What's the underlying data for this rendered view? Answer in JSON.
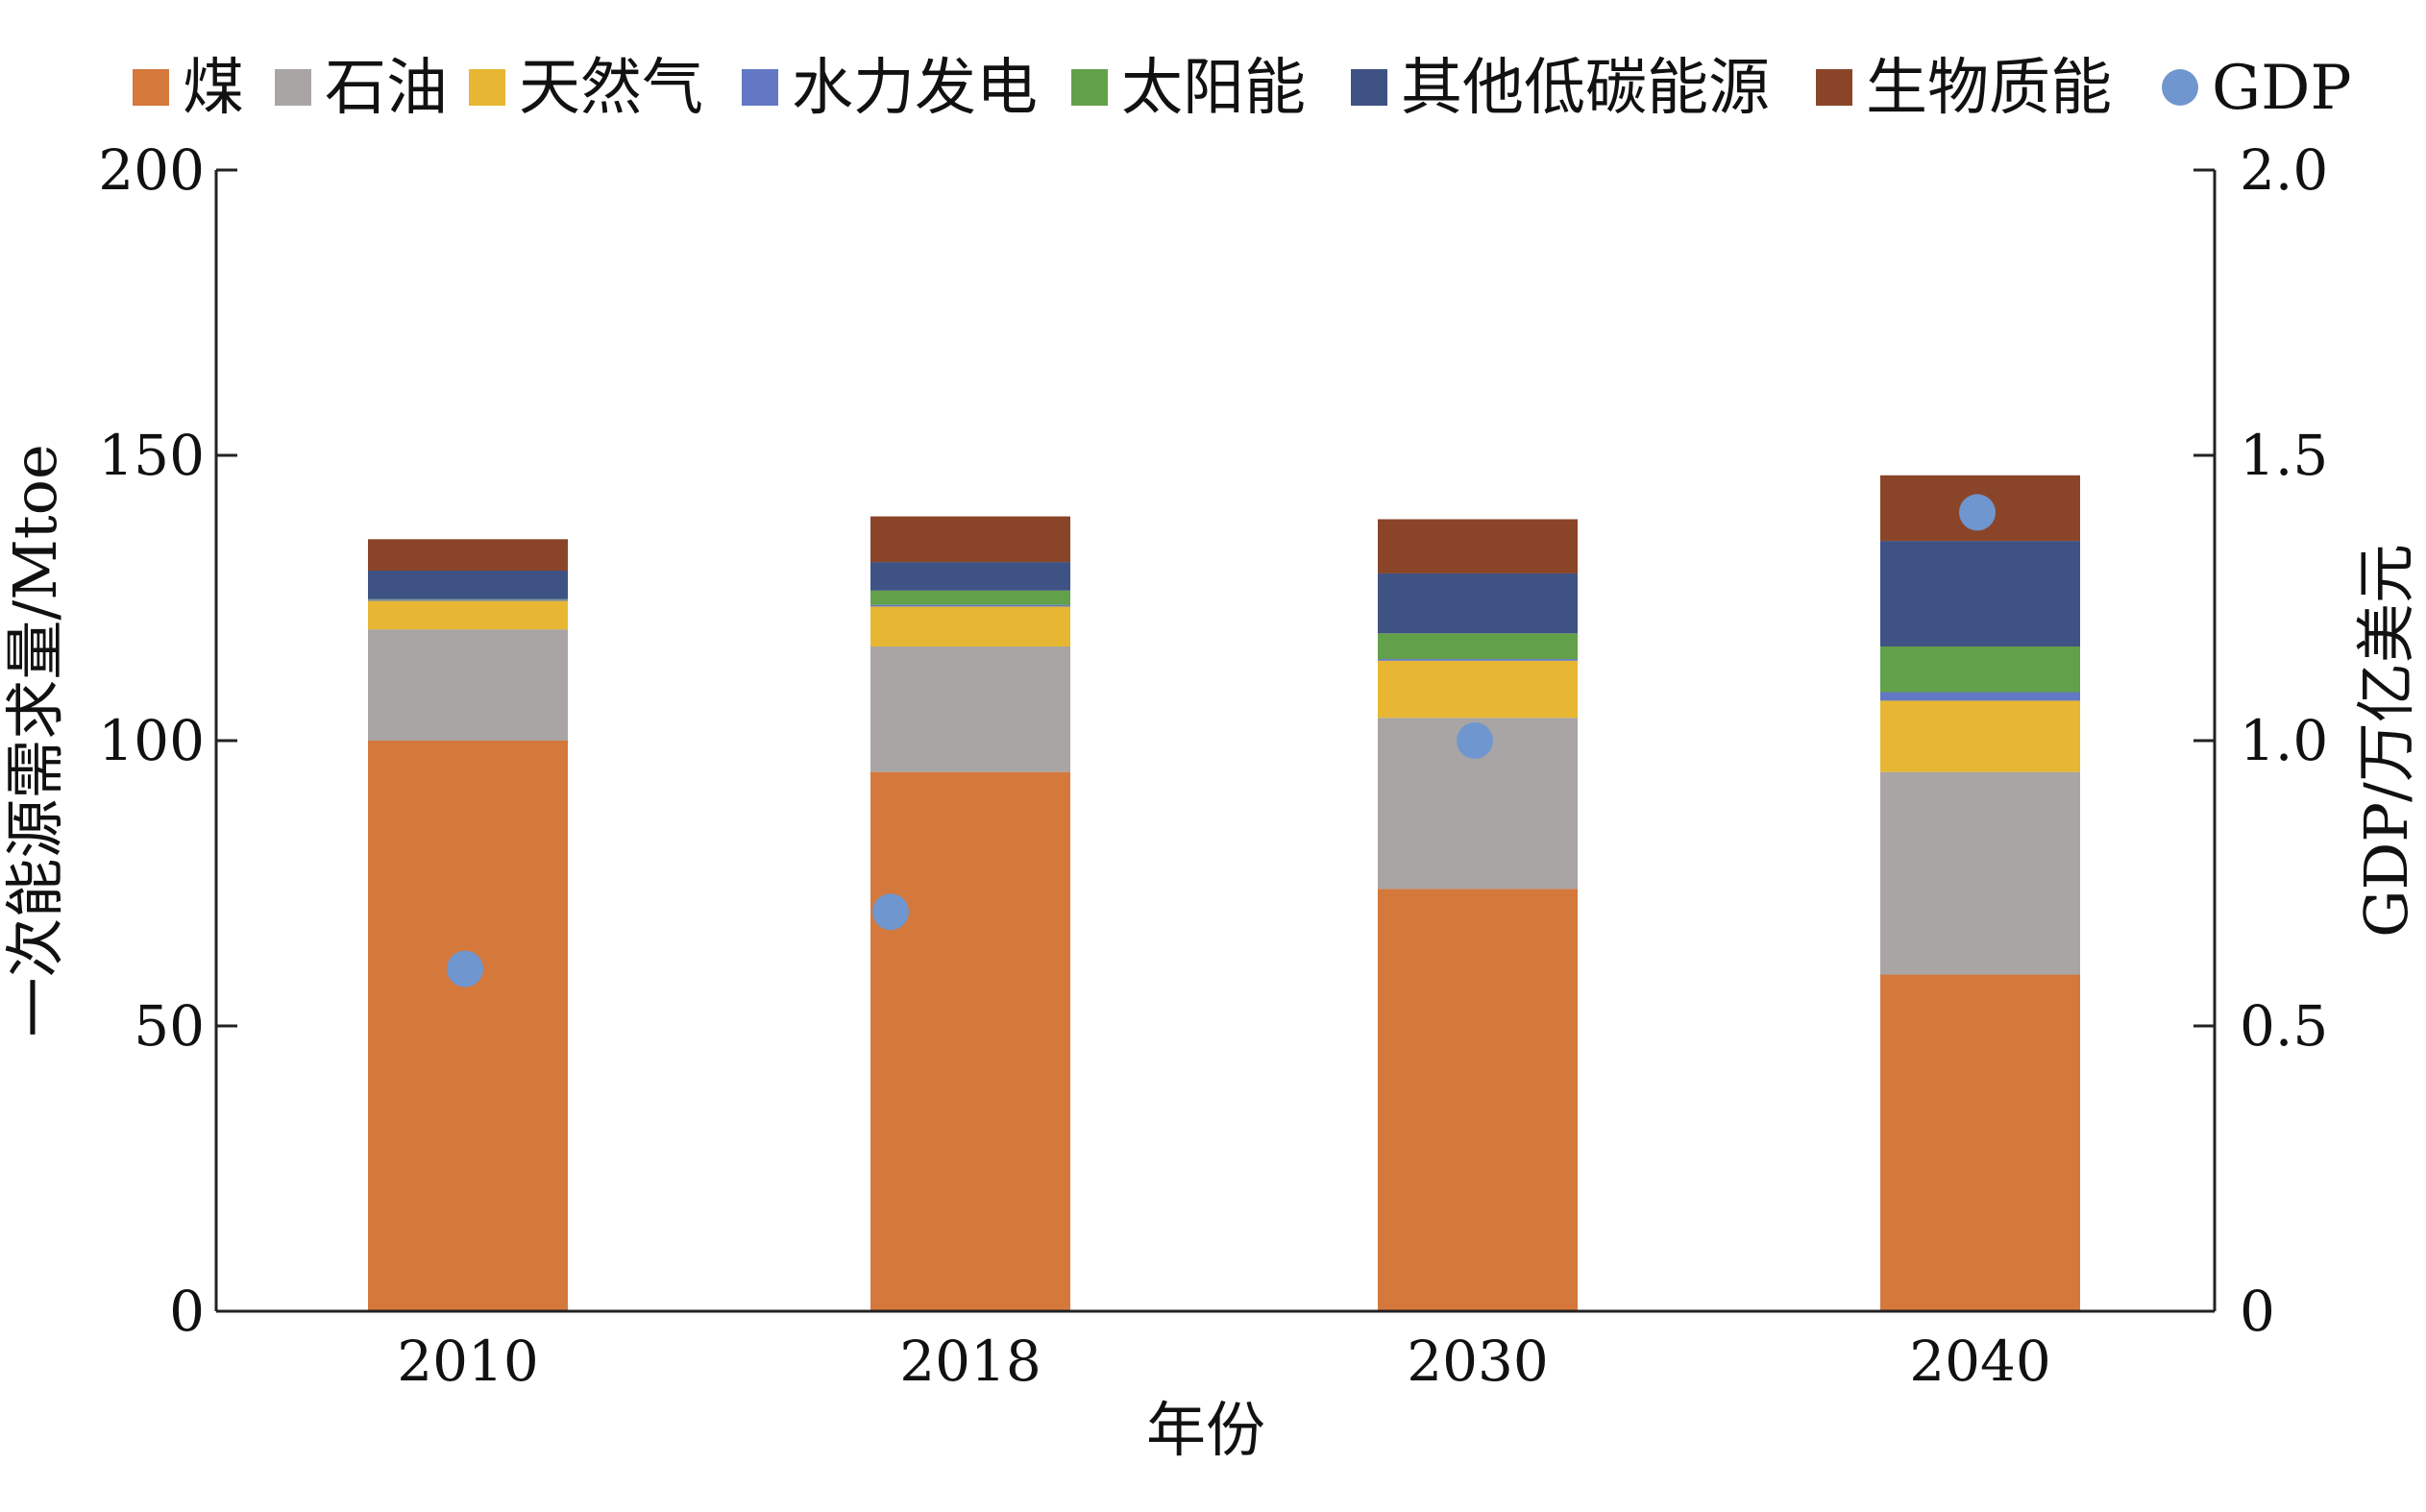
{
  "chart_data": {
    "type": "bar",
    "stacked": true,
    "categories": [
      "2010",
      "2018",
      "2030",
      "2040"
    ],
    "xlabel": "年份",
    "ylabel": "一次能源需求量/Mtoe",
    "ylabel_right": "GDP/万亿美元",
    "ylim": [
      0,
      200
    ],
    "ylim_right": [
      0,
      2.0
    ],
    "yticks": [
      "0",
      "50",
      "100",
      "150",
      "200"
    ],
    "yticks_right": [
      "0",
      "0.5",
      "1.0",
      "1.5",
      "2.0"
    ],
    "grid": false,
    "legend_position": "top",
    "series": [
      {
        "name": "煤",
        "color": "#d5783c",
        "values": [
          100,
          94.5,
          74,
          59
        ]
      },
      {
        "name": "石油",
        "color": "#a9a5a4",
        "values": [
          19.5,
          22,
          30,
          35.5
        ]
      },
      {
        "name": "天然气",
        "color": "#e7b733",
        "values": [
          5,
          7,
          10,
          12.5
        ]
      },
      {
        "name": "水力发电",
        "color": "#6378c4",
        "values": [
          0.2,
          0.3,
          0.3,
          1.5
        ]
      },
      {
        "name": "太阳能",
        "color": "#63a04a",
        "values": [
          0.1,
          2.5,
          4.5,
          8
        ]
      },
      {
        "name": "其他低碳能源",
        "color": "#3f5284",
        "values": [
          5,
          5,
          10.5,
          18.5
        ]
      },
      {
        "name": "生物质能",
        "color": "#8a4529",
        "values": [
          5.5,
          8,
          9.5,
          11.5
        ]
      }
    ],
    "gdp_series": {
      "name": "GDP",
      "color": "#6f96ce",
      "axis": "right",
      "values": [
        0.6,
        0.7,
        1.0,
        1.4
      ]
    }
  }
}
